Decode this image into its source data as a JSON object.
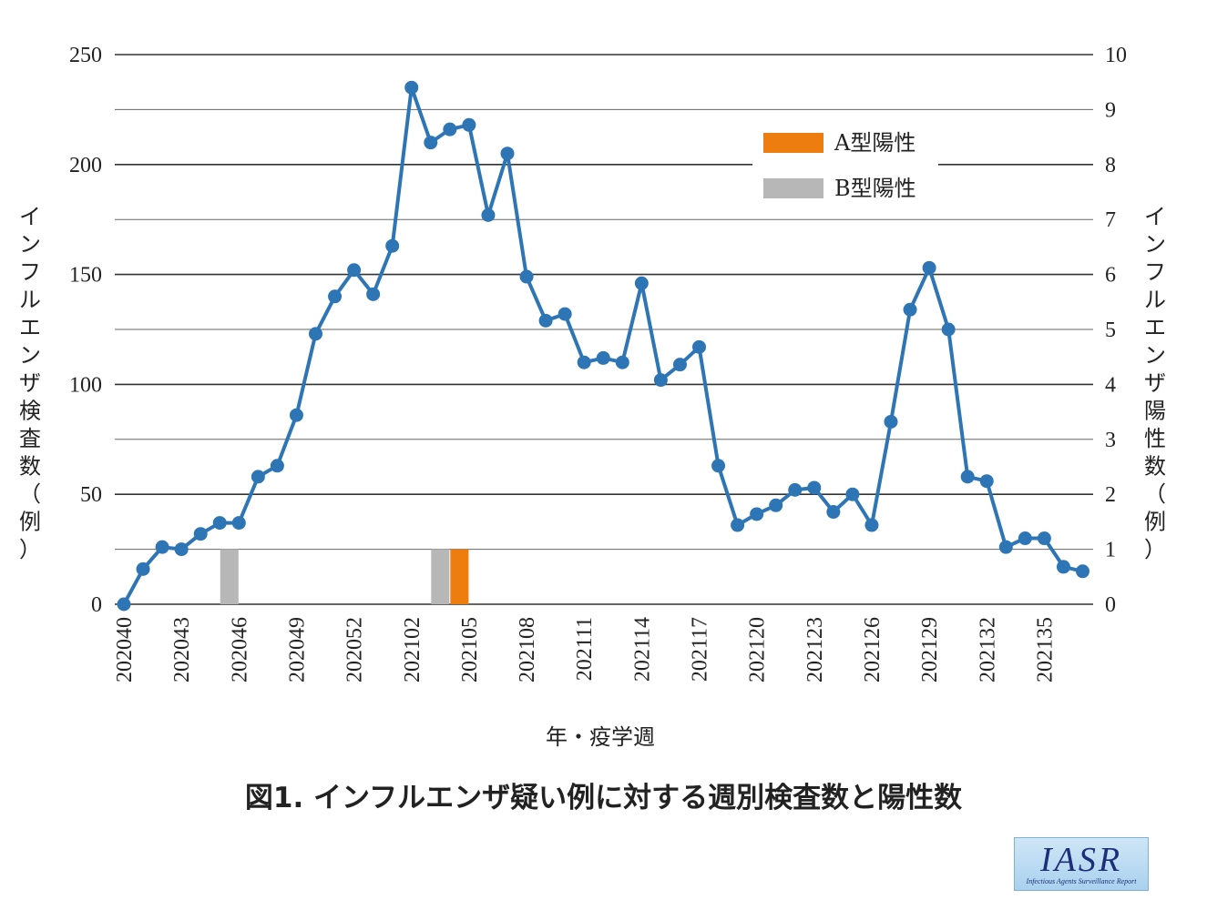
{
  "chart_data": {
    "type": "line",
    "caption": "図1. インフルエンザ疑い例に対する週別検査数と陽性数",
    "xlabel": "年・疫学週",
    "ylabel_left": "インフルエンザ検査数（例）",
    "ylabel_right": "インフルエンザ陽性数（例）",
    "ylim_left": [
      0,
      250
    ],
    "ylim_right": [
      0,
      10
    ],
    "yticks_left": [
      0,
      50,
      100,
      150,
      200,
      250
    ],
    "yticks_right": [
      0,
      1,
      2,
      3,
      4,
      5,
      6,
      7,
      8,
      9,
      10
    ],
    "x_tick_labels": [
      "202040",
      "202043",
      "202046",
      "202049",
      "202052",
      "202102",
      "202105",
      "202108",
      "202111",
      "202114",
      "202117",
      "202120",
      "202123",
      "202126",
      "202129",
      "202132",
      "202135"
    ],
    "line_series": {
      "axis": "left",
      "color": "#2e75b6",
      "values": [
        0,
        16,
        26,
        25,
        32,
        37,
        37,
        58,
        63,
        86,
        123,
        140,
        152,
        141,
        163,
        235,
        210,
        216,
        218,
        177,
        205,
        149,
        129,
        132,
        110,
        112,
        110,
        146,
        102,
        109,
        117,
        63,
        36,
        41,
        45,
        52,
        53,
        42,
        50,
        36,
        83,
        134,
        153,
        125,
        58,
        56,
        26,
        30,
        30,
        17,
        15
      ]
    },
    "bar_series": [
      {
        "name": "A型陽性",
        "color": "#ed7d0e",
        "axis": "right",
        "bars": [
          {
            "week_index": 17,
            "value": 1
          }
        ]
      },
      {
        "name": "B型陽性",
        "color": "#b7b7b7",
        "axis": "right",
        "bars": [
          {
            "week_index": 5,
            "value": 1
          },
          {
            "week_index": 16,
            "value": 1
          }
        ]
      }
    ],
    "legend_position": "upper-right",
    "grid": true
  },
  "logo": {
    "main": "IASR",
    "sub": "Infectious Agents Surveillance Report"
  }
}
